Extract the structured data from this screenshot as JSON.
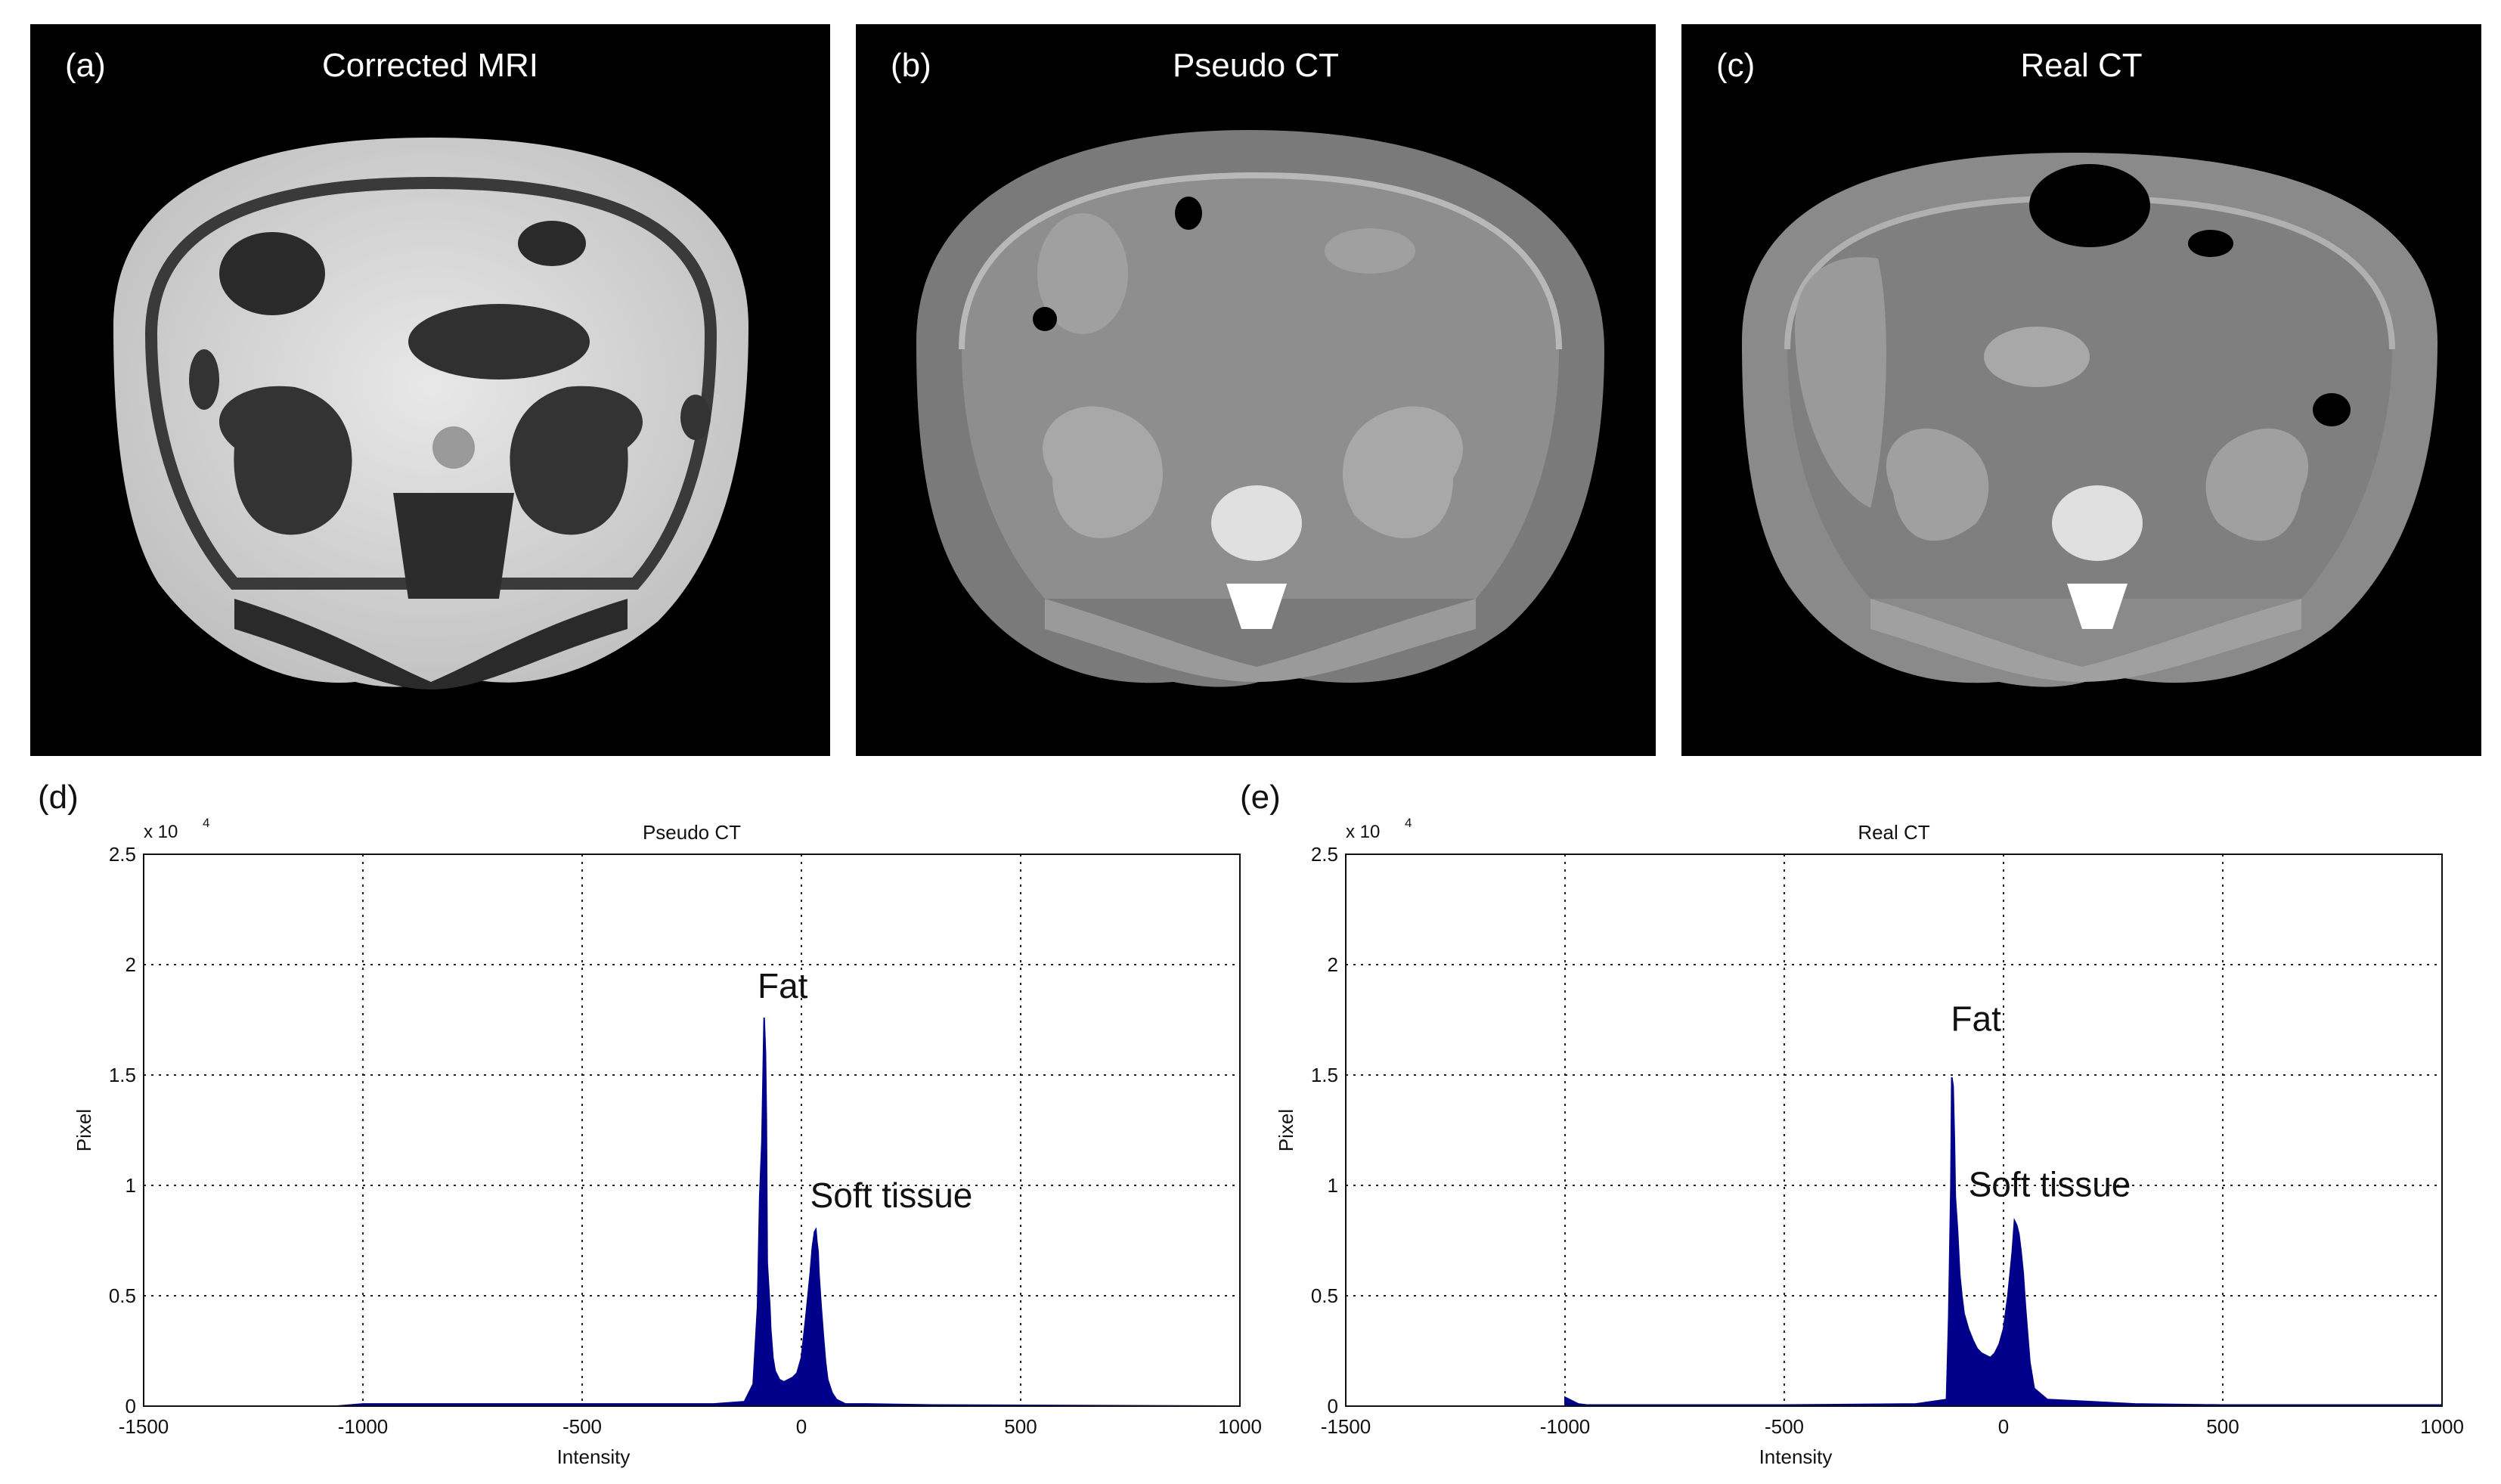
{
  "images": [
    {
      "letter": "(a)",
      "title": "Corrected MRI",
      "kind": "mri"
    },
    {
      "letter": "(b)",
      "title": "Pseudo CT",
      "kind": "pseudo"
    },
    {
      "letter": "(c)",
      "title": "Real CT",
      "kind": "real"
    }
  ],
  "chart_data": [
    {
      "letter": "(d)",
      "type": "bar",
      "title": "Pseudo CT",
      "xlabel": "Intensity",
      "ylabel": "Pixel",
      "y_exponent_label": "x 10",
      "y_exponent_power": "4",
      "xlim": [
        -1500,
        1000
      ],
      "ylim": [
        0,
        2.5
      ],
      "xticks": [
        -1500,
        -1000,
        -500,
        0,
        500,
        1000
      ],
      "yticks": [
        0,
        0.5,
        1,
        1.5,
        2,
        2.5
      ],
      "grid": true,
      "color": "#00008b",
      "x": [
        -1060,
        -1000,
        -400,
        -200,
        -130,
        -110,
        -100,
        -95,
        -90,
        -85,
        -82,
        -80,
        -78,
        -75,
        -72,
        -70,
        -65,
        -60,
        -50,
        -40,
        -30,
        -20,
        -10,
        0,
        10,
        20,
        25,
        30,
        33,
        35,
        38,
        40,
        45,
        50,
        55,
        60,
        70,
        80,
        100,
        150,
        300,
        1000
      ],
      "y": [
        0.0,
        0.01,
        0.01,
        0.01,
        0.02,
        0.1,
        0.45,
        0.95,
        1.2,
        1.76,
        1.6,
        1.3,
        0.65,
        0.55,
        0.45,
        0.35,
        0.22,
        0.16,
        0.12,
        0.11,
        0.12,
        0.13,
        0.15,
        0.22,
        0.4,
        0.6,
        0.72,
        0.79,
        0.8,
        0.75,
        0.7,
        0.6,
        0.45,
        0.32,
        0.2,
        0.12,
        0.06,
        0.03,
        0.01,
        0.01,
        0.005,
        0.0
      ],
      "annotations": [
        {
          "text": "Fat",
          "x": -100,
          "y": 1.85
        },
        {
          "text": "Soft tissue",
          "x": 20,
          "y": 0.9
        }
      ]
    },
    {
      "letter": "(e)",
      "type": "bar",
      "title": "Real CT",
      "xlabel": "Intensity",
      "ylabel": "Pixel",
      "y_exponent_label": "x 10",
      "y_exponent_power": "4",
      "xlim": [
        -1500,
        1000
      ],
      "ylim": [
        0,
        2.5
      ],
      "xticks": [
        -1500,
        -1000,
        -500,
        0,
        500,
        1000
      ],
      "yticks": [
        0,
        0.5,
        1,
        1.5,
        2,
        2.5
      ],
      "grid": true,
      "color": "#00008b",
      "x": [
        -1000,
        -990,
        -980,
        -970,
        -950,
        -900,
        -500,
        -200,
        -130,
        -125,
        -120,
        -118,
        -115,
        -112,
        -110,
        -105,
        -100,
        -95,
        -90,
        -80,
        -70,
        -60,
        -50,
        -40,
        -30,
        -20,
        -10,
        0,
        10,
        20,
        25,
        30,
        35,
        40,
        45,
        50,
        60,
        70,
        100,
        200,
        300,
        500,
        1000
      ],
      "y": [
        0.04,
        0.03,
        0.02,
        0.01,
        0.005,
        0.005,
        0.005,
        0.01,
        0.03,
        0.4,
        1.0,
        1.49,
        1.45,
        1.2,
        0.95,
        0.8,
        0.6,
        0.5,
        0.42,
        0.35,
        0.3,
        0.26,
        0.24,
        0.23,
        0.22,
        0.24,
        0.28,
        0.35,
        0.5,
        0.7,
        0.84,
        0.82,
        0.78,
        0.7,
        0.6,
        0.45,
        0.2,
        0.08,
        0.03,
        0.02,
        0.01,
        0.005,
        0.005
      ],
      "annotations": [
        {
          "text": "Fat",
          "x": -120,
          "y": 1.7
        },
        {
          "text": "Soft tissue",
          "x": -80,
          "y": 0.95
        }
      ]
    }
  ]
}
